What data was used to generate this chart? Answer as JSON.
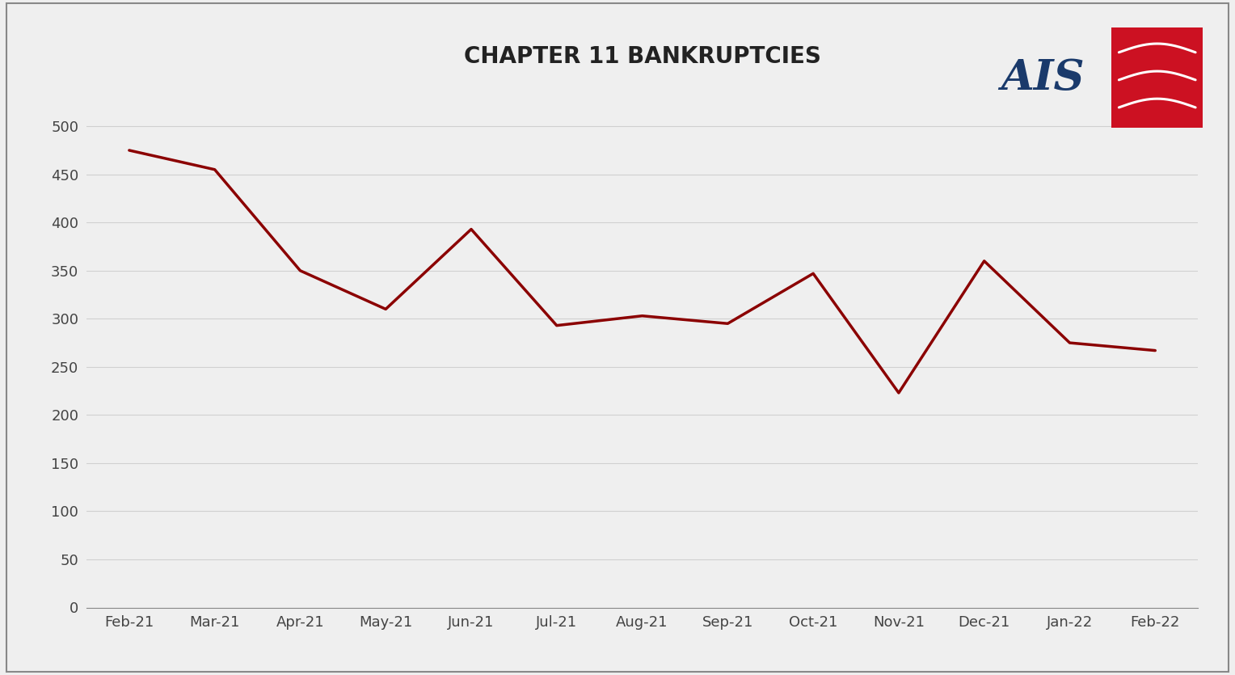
{
  "title": "CHAPTER 11 BANKRUPTCIES",
  "categories": [
    "Feb-21",
    "Mar-21",
    "Apr-21",
    "May-21",
    "Jun-21",
    "Jul-21",
    "Aug-21",
    "Sep-21",
    "Oct-21",
    "Nov-21",
    "Dec-21",
    "Jan-22",
    "Feb-22"
  ],
  "values": [
    475,
    455,
    350,
    310,
    393,
    293,
    303,
    295,
    347,
    223,
    360,
    275,
    267
  ],
  "line_color": "#8B0000",
  "line_width": 2.5,
  "background_color": "#efefef",
  "plot_bg_color": "#efefef",
  "title_fontsize": 20,
  "title_fontweight": "bold",
  "tick_fontsize": 13,
  "ylim": [
    0,
    540
  ],
  "yticks": [
    0,
    50,
    100,
    150,
    200,
    250,
    300,
    350,
    400,
    450,
    500
  ],
  "grid_color": "#d0d0d0",
  "grid_linewidth": 0.8,
  "border_color": "#888888",
  "ais_text_color": "#1a3a6b",
  "ais_box_color": "#cc1122",
  "ais_text_fontsize": 36
}
